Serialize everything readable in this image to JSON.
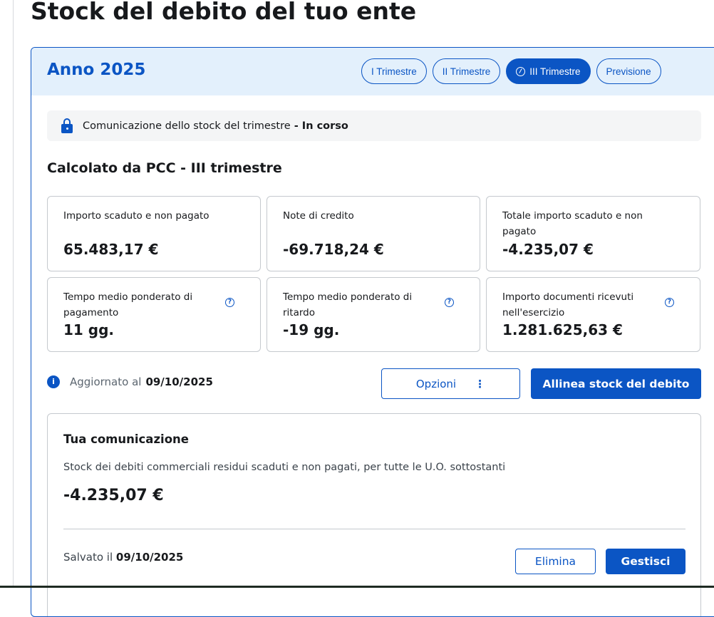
{
  "page_title": "Stock del debito del tuo ente",
  "year_title": "Anno 2025",
  "tabs": [
    {
      "label": "I Trimestre"
    },
    {
      "label": "II Trimestre"
    },
    {
      "label": "III Trimestre",
      "active": true
    },
    {
      "label": "Previsione"
    }
  ],
  "status": {
    "text": "Comunicazione dello stock del trimestre",
    "separator": " - ",
    "state": "In corso",
    "icon": "lock-open-icon"
  },
  "calc_title": "Calcolato da PCC - III trimestre",
  "metrics": [
    {
      "label": "Importo scaduto e non pagato",
      "value": "65.483,17 €"
    },
    {
      "label": "Note di credito",
      "value": "-69.718,24 €"
    },
    {
      "label": "Totale importo scaduto e non pagato",
      "value": "-4.235,07 €"
    },
    {
      "label": "Tempo medio ponderato di pagamento",
      "value": "11 gg.",
      "help": "?"
    },
    {
      "label": "Tempo medio ponderato di ritardo",
      "value": "-19 gg.",
      "help": "?"
    },
    {
      "label": "Importo documenti ricevuti nell'esercizio",
      "value": "1.281.625,63 €",
      "help": "?"
    }
  ],
  "updated": {
    "icon_text": "i",
    "label": "Aggiornato al",
    "date": "09/10/2025"
  },
  "options_button": "Opzioni",
  "options_dots": "⋮",
  "align_button": "Allinea stock del debito",
  "communication": {
    "title": "Tua comunicazione",
    "description": "Stock dei debiti commerciali residui scaduti e non pagati, per tutte le U.O. sottostanti",
    "value": "-4.235,07 €",
    "saved_label": "Salvato il",
    "saved_date": "09/10/2025",
    "delete_button": "Elimina",
    "manage_button": "Gestisci"
  },
  "colors": {
    "primary": "#0b55c4",
    "header_bg": "#e3f0fc"
  }
}
